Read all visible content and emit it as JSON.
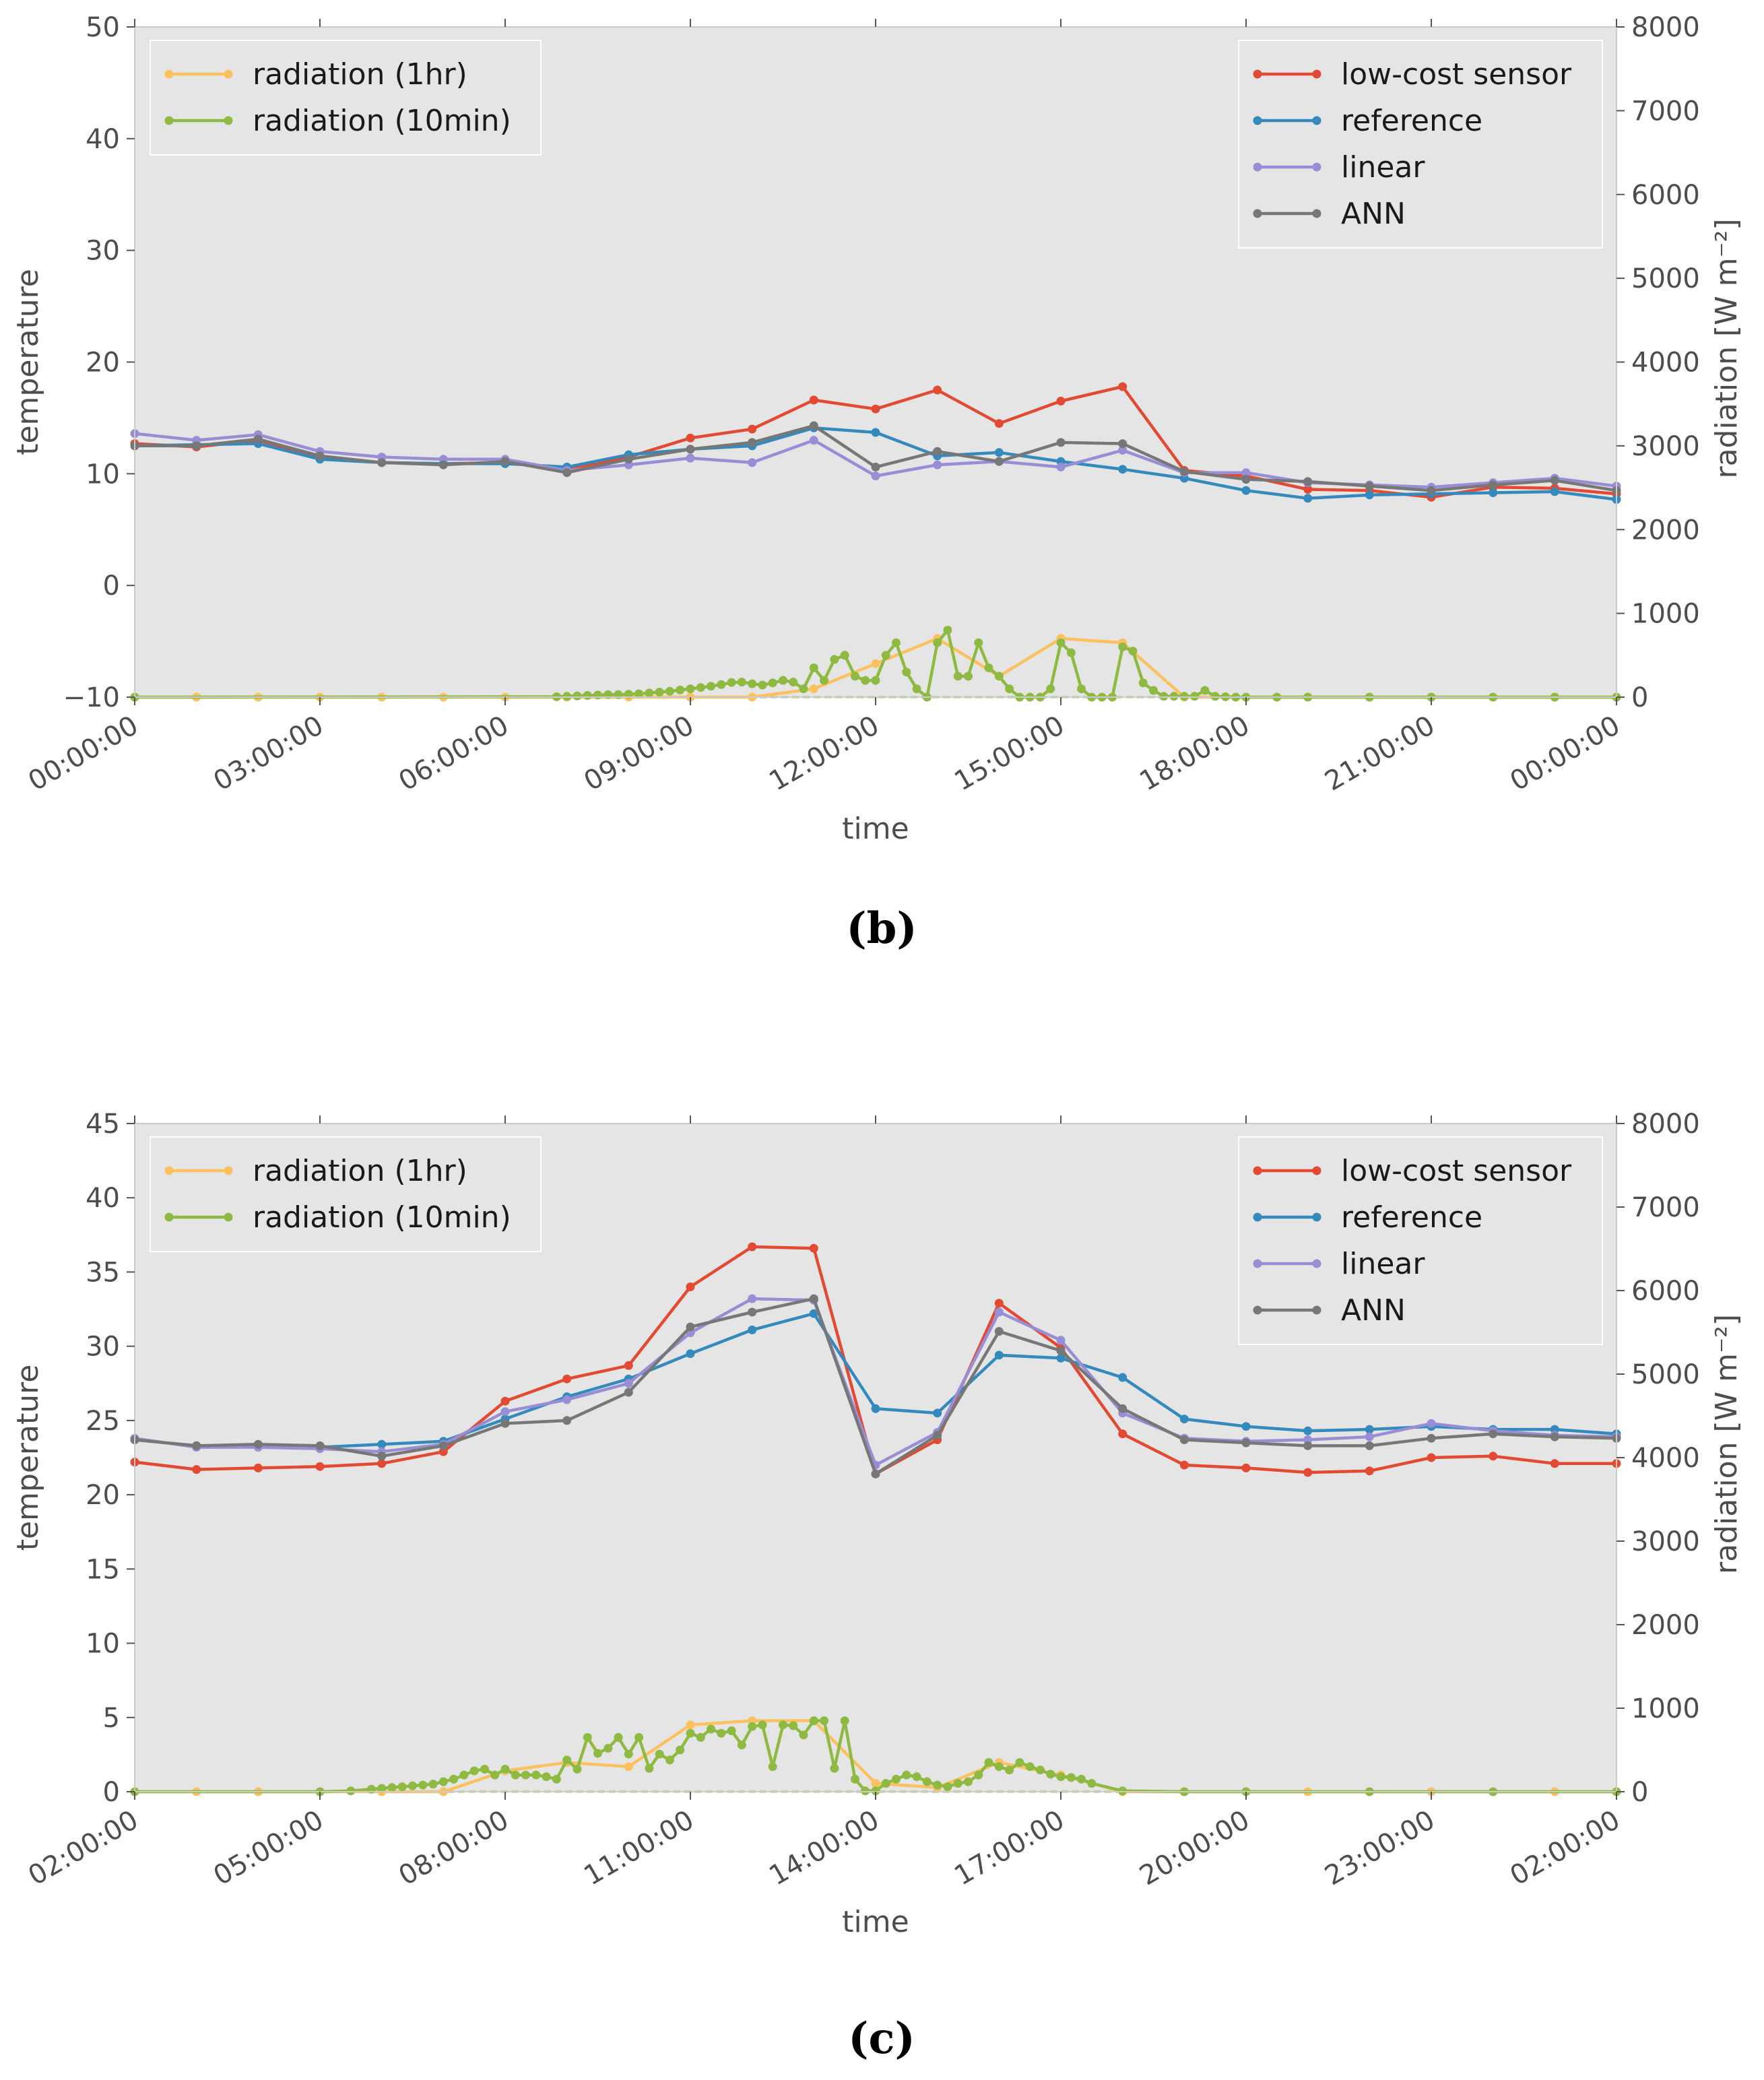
{
  "chart_data": [
    {
      "type": "line",
      "panel_label": "(b)",
      "xlabel": "time",
      "ylabel": "temperature",
      "y2label": "radiation [W m⁻²]",
      "ylim": [
        -10,
        50
      ],
      "y_ticks": [
        -10,
        0,
        10,
        20,
        30,
        40,
        50
      ],
      "y2lim": [
        0,
        8000
      ],
      "y2_ticks": [
        0,
        1000,
        2000,
        3000,
        4000,
        5000,
        6000,
        7000,
        8000
      ],
      "xlim": [
        0,
        24
      ],
      "x_tick_positions": [
        0,
        3,
        6,
        9,
        12,
        15,
        18,
        21,
        24
      ],
      "x_tick_labels": [
        "00:00:00",
        "03:00:00",
        "06:00:00",
        "09:00:00",
        "12:00:00",
        "15:00:00",
        "18:00:00",
        "21:00:00",
        "00:00:00"
      ],
      "legend_left": [
        "radiation (1hr)",
        "radiation (10min)"
      ],
      "legend_right": [
        "low-cost sensor",
        "reference",
        "linear",
        "ANN"
      ],
      "colors": {
        "low-cost sensor": "#e24a33",
        "reference": "#348abd",
        "linear": "#988ed5",
        "ANN": "#777777",
        "radiation (1hr)": "#fbc15e",
        "radiation (10min)": "#8eba42"
      },
      "series": [
        {
          "name": "low-cost sensor",
          "axis": "left",
          "x": [
            0,
            1,
            2,
            3,
            4,
            5,
            6,
            7,
            8,
            9,
            10,
            11,
            12,
            13,
            14,
            15,
            16,
            17,
            18,
            19,
            20,
            21,
            22,
            23,
            24
          ],
          "values": [
            12.7,
            12.4,
            13.0,
            11.5,
            11.0,
            10.9,
            11.0,
            10.4,
            11.5,
            13.2,
            14.0,
            16.6,
            15.8,
            17.5,
            14.5,
            16.5,
            17.8,
            10.3,
            9.8,
            8.6,
            8.5,
            7.9,
            8.8,
            8.7,
            8.2
          ]
        },
        {
          "name": "reference",
          "axis": "left",
          "x": [
            0,
            1,
            2,
            3,
            4,
            5,
            6,
            7,
            8,
            9,
            10,
            11,
            12,
            13,
            14,
            15,
            16,
            17,
            18,
            19,
            20,
            21,
            22,
            23,
            24
          ],
          "values": [
            12.5,
            12.6,
            12.7,
            11.3,
            11.0,
            10.9,
            10.9,
            10.6,
            11.7,
            12.2,
            12.5,
            14.1,
            13.7,
            11.6,
            11.9,
            11.1,
            10.4,
            9.6,
            8.5,
            7.8,
            8.1,
            8.2,
            8.3,
            8.4,
            7.7
          ]
        },
        {
          "name": "linear",
          "axis": "left",
          "x": [
            0,
            1,
            2,
            3,
            4,
            5,
            6,
            7,
            8,
            9,
            10,
            11,
            12,
            13,
            14,
            15,
            16,
            17,
            18,
            19,
            20,
            21,
            22,
            23,
            24
          ],
          "values": [
            13.6,
            13.0,
            13.5,
            12.0,
            11.5,
            11.3,
            11.3,
            10.3,
            10.8,
            11.4,
            11.0,
            13.0,
            9.8,
            10.8,
            11.1,
            10.6,
            12.1,
            10.1,
            10.1,
            9.2,
            9.0,
            8.8,
            9.2,
            9.6,
            8.9
          ]
        },
        {
          "name": "ANN",
          "axis": "left",
          "x": [
            0,
            1,
            2,
            3,
            4,
            5,
            6,
            7,
            8,
            9,
            10,
            11,
            12,
            13,
            14,
            15,
            16,
            17,
            18,
            19,
            20,
            21,
            22,
            23,
            24
          ],
          "values": [
            12.5,
            12.5,
            13.1,
            11.6,
            11.0,
            10.8,
            11.1,
            10.1,
            11.3,
            12.2,
            12.8,
            14.3,
            10.6,
            12.0,
            11.1,
            12.8,
            12.7,
            10.2,
            9.5,
            9.3,
            8.9,
            8.5,
            9.0,
            9.4,
            8.5
          ]
        },
        {
          "name": "radiation (1hr)",
          "axis": "right",
          "x": [
            0,
            1,
            2,
            3,
            4,
            5,
            6,
            7,
            8,
            9,
            10,
            11,
            12,
            13,
            14,
            15,
            16,
            17,
            18,
            19,
            20,
            21,
            22,
            23,
            24
          ],
          "values": [
            0,
            0,
            0,
            0,
            0,
            0,
            0,
            0,
            0,
            0,
            0,
            100,
            400,
            700,
            250,
            700,
            650,
            0,
            0,
            0,
            0,
            0,
            0,
            0,
            0
          ]
        },
        {
          "name": "radiation (10min)",
          "axis": "right",
          "x": [
            0,
            6.833,
            7,
            7.167,
            7.333,
            7.5,
            7.667,
            7.833,
            8,
            8.167,
            8.333,
            8.5,
            8.667,
            8.833,
            9,
            9.167,
            9.333,
            9.5,
            9.667,
            9.833,
            10,
            10.167,
            10.333,
            10.5,
            10.667,
            10.833,
            11,
            11.167,
            11.333,
            11.5,
            11.667,
            11.833,
            12,
            12.167,
            12.333,
            12.5,
            12.667,
            12.833,
            13,
            13.167,
            13.333,
            13.5,
            13.667,
            13.833,
            14,
            14.167,
            14.333,
            14.5,
            14.667,
            14.833,
            15,
            15.167,
            15.333,
            15.5,
            15.667,
            15.833,
            16,
            16.167,
            16.333,
            16.5,
            16.667,
            16.833,
            17,
            17.167,
            17.333,
            17.5,
            17.667,
            17.833,
            18,
            18.5,
            19,
            20,
            21,
            22,
            23,
            24
          ],
          "values": [
            0,
            5,
            10,
            15,
            20,
            25,
            30,
            30,
            35,
            40,
            50,
            60,
            70,
            85,
            100,
            115,
            130,
            150,
            175,
            180,
            160,
            145,
            170,
            200,
            180,
            100,
            350,
            200,
            450,
            500,
            250,
            200,
            200,
            500,
            650,
            300,
            100,
            0,
            650,
            800,
            250,
            250,
            650,
            350,
            250,
            100,
            0,
            0,
            0,
            100,
            650,
            530,
            100,
            0,
            0,
            0,
            600,
            550,
            170,
            80,
            10,
            10,
            10,
            10,
            80,
            10,
            5,
            0,
            0,
            0,
            0,
            0,
            0,
            0,
            0,
            0
          ]
        }
      ]
    },
    {
      "type": "line",
      "panel_label": "(c)",
      "xlabel": "time",
      "ylabel": "temperature",
      "y2label": "radiation [W m⁻²]",
      "ylim": [
        0,
        45
      ],
      "y_ticks": [
        0,
        5,
        10,
        15,
        20,
        25,
        30,
        35,
        40,
        45
      ],
      "y2lim": [
        0,
        8000
      ],
      "y2_ticks": [
        0,
        1000,
        2000,
        3000,
        4000,
        5000,
        6000,
        7000,
        8000
      ],
      "xlim": [
        0,
        24
      ],
      "x_tick_positions": [
        0,
        3,
        6,
        9,
        12,
        15,
        18,
        21,
        24
      ],
      "x_tick_labels": [
        "02:00:00",
        "05:00:00",
        "08:00:00",
        "11:00:00",
        "14:00:00",
        "17:00:00",
        "20:00:00",
        "23:00:00",
        "02:00:00"
      ],
      "legend_left": [
        "radiation (1hr)",
        "radiation (10min)"
      ],
      "legend_right": [
        "low-cost sensor",
        "reference",
        "linear",
        "ANN"
      ],
      "colors": {
        "low-cost sensor": "#e24a33",
        "reference": "#348abd",
        "linear": "#988ed5",
        "ANN": "#777777",
        "radiation (1hr)": "#fbc15e",
        "radiation (10min)": "#8eba42"
      },
      "series": [
        {
          "name": "low-cost sensor",
          "axis": "left",
          "x": [
            0,
            1,
            2,
            3,
            4,
            5,
            6,
            7,
            8,
            9,
            10,
            11,
            12,
            13,
            14,
            15,
            16,
            17,
            18,
            19,
            20,
            21,
            22,
            23,
            24
          ],
          "values": [
            22.2,
            21.7,
            21.8,
            21.9,
            22.1,
            22.9,
            26.3,
            27.8,
            28.7,
            34.0,
            36.7,
            36.6,
            21.4,
            23.7,
            32.9,
            29.9,
            24.1,
            22.0,
            21.8,
            21.5,
            21.6,
            22.5,
            22.6,
            22.1,
            22.1
          ]
        },
        {
          "name": "reference",
          "axis": "left",
          "x": [
            0,
            1,
            2,
            3,
            4,
            5,
            6,
            7,
            8,
            9,
            10,
            11,
            12,
            13,
            14,
            15,
            16,
            17,
            18,
            19,
            20,
            21,
            22,
            23,
            24
          ],
          "values": [
            23.7,
            23.3,
            23.3,
            23.2,
            23.4,
            23.6,
            25.1,
            26.6,
            27.8,
            29.5,
            31.1,
            32.2,
            25.8,
            25.5,
            29.4,
            29.2,
            27.9,
            25.1,
            24.6,
            24.3,
            24.4,
            24.6,
            24.4,
            24.4,
            24.1
          ]
        },
        {
          "name": "linear",
          "axis": "left",
          "x": [
            0,
            1,
            2,
            3,
            4,
            5,
            6,
            7,
            8,
            9,
            10,
            11,
            12,
            13,
            14,
            15,
            16,
            17,
            18,
            19,
            20,
            21,
            22,
            23,
            24
          ],
          "values": [
            23.8,
            23.2,
            23.2,
            23.1,
            22.9,
            23.4,
            25.6,
            26.4,
            27.5,
            30.9,
            33.2,
            33.1,
            22.0,
            24.2,
            32.3,
            30.4,
            25.5,
            23.8,
            23.6,
            23.7,
            23.9,
            24.8,
            24.3,
            24.0,
            23.9
          ]
        },
        {
          "name": "ANN",
          "axis": "left",
          "x": [
            0,
            1,
            2,
            3,
            4,
            5,
            6,
            7,
            8,
            9,
            10,
            11,
            12,
            13,
            14,
            15,
            16,
            17,
            18,
            19,
            20,
            21,
            22,
            23,
            24
          ],
          "values": [
            23.7,
            23.3,
            23.4,
            23.3,
            22.6,
            23.3,
            24.8,
            25.0,
            26.9,
            31.3,
            32.3,
            33.2,
            21.4,
            24.0,
            31.0,
            29.7,
            25.8,
            23.7,
            23.5,
            23.3,
            23.3,
            23.8,
            24.1,
            23.9,
            23.8
          ]
        },
        {
          "name": "radiation (1hr)",
          "axis": "right",
          "x": [
            0,
            1,
            2,
            3,
            4,
            5,
            6,
            7,
            8,
            9,
            10,
            11,
            12,
            13,
            14,
            15,
            16,
            17,
            18,
            19,
            20,
            21,
            22,
            23,
            24
          ],
          "values": [
            0,
            0,
            0,
            0,
            0,
            0,
            250,
            350,
            300,
            800,
            850,
            850,
            100,
            50,
            350,
            200,
            0,
            0,
            0,
            0,
            0,
            0,
            0,
            0,
            0
          ]
        },
        {
          "name": "radiation (10min)",
          "axis": "right",
          "x": [
            0,
            3,
            3.5,
            3.833,
            4,
            4.167,
            4.333,
            4.5,
            4.667,
            4.833,
            5,
            5.167,
            5.333,
            5.5,
            5.667,
            5.833,
            6,
            6.167,
            6.333,
            6.5,
            6.667,
            6.833,
            7,
            7.167,
            7.333,
            7.5,
            7.667,
            7.833,
            8,
            8.167,
            8.333,
            8.5,
            8.667,
            8.833,
            9,
            9.167,
            9.333,
            9.5,
            9.667,
            9.833,
            10,
            10.167,
            10.333,
            10.5,
            10.667,
            10.833,
            11,
            11.167,
            11.333,
            11.5,
            11.667,
            11.833,
            12,
            12.167,
            12.333,
            12.5,
            12.667,
            12.833,
            13,
            13.167,
            13.333,
            13.5,
            13.667,
            13.833,
            14,
            14.167,
            14.333,
            14.5,
            14.667,
            14.833,
            15,
            15.167,
            15.333,
            15.5,
            16,
            17,
            18,
            20,
            22,
            24
          ],
          "values": [
            0,
            0,
            10,
            30,
            40,
            50,
            60,
            70,
            80,
            90,
            120,
            150,
            200,
            250,
            270,
            200,
            270,
            200,
            200,
            200,
            180,
            150,
            380,
            270,
            650,
            460,
            520,
            650,
            450,
            650,
            280,
            450,
            380,
            500,
            700,
            650,
            750,
            700,
            730,
            560,
            780,
            800,
            300,
            800,
            790,
            680,
            850,
            850,
            280,
            850,
            150,
            10,
            10,
            100,
            150,
            200,
            180,
            120,
            80,
            60,
            100,
            120,
            200,
            350,
            300,
            260,
            350,
            300,
            260,
            210,
            180,
            170,
            150,
            100,
            10,
            0,
            0,
            0,
            0,
            0
          ]
        }
      ]
    }
  ]
}
